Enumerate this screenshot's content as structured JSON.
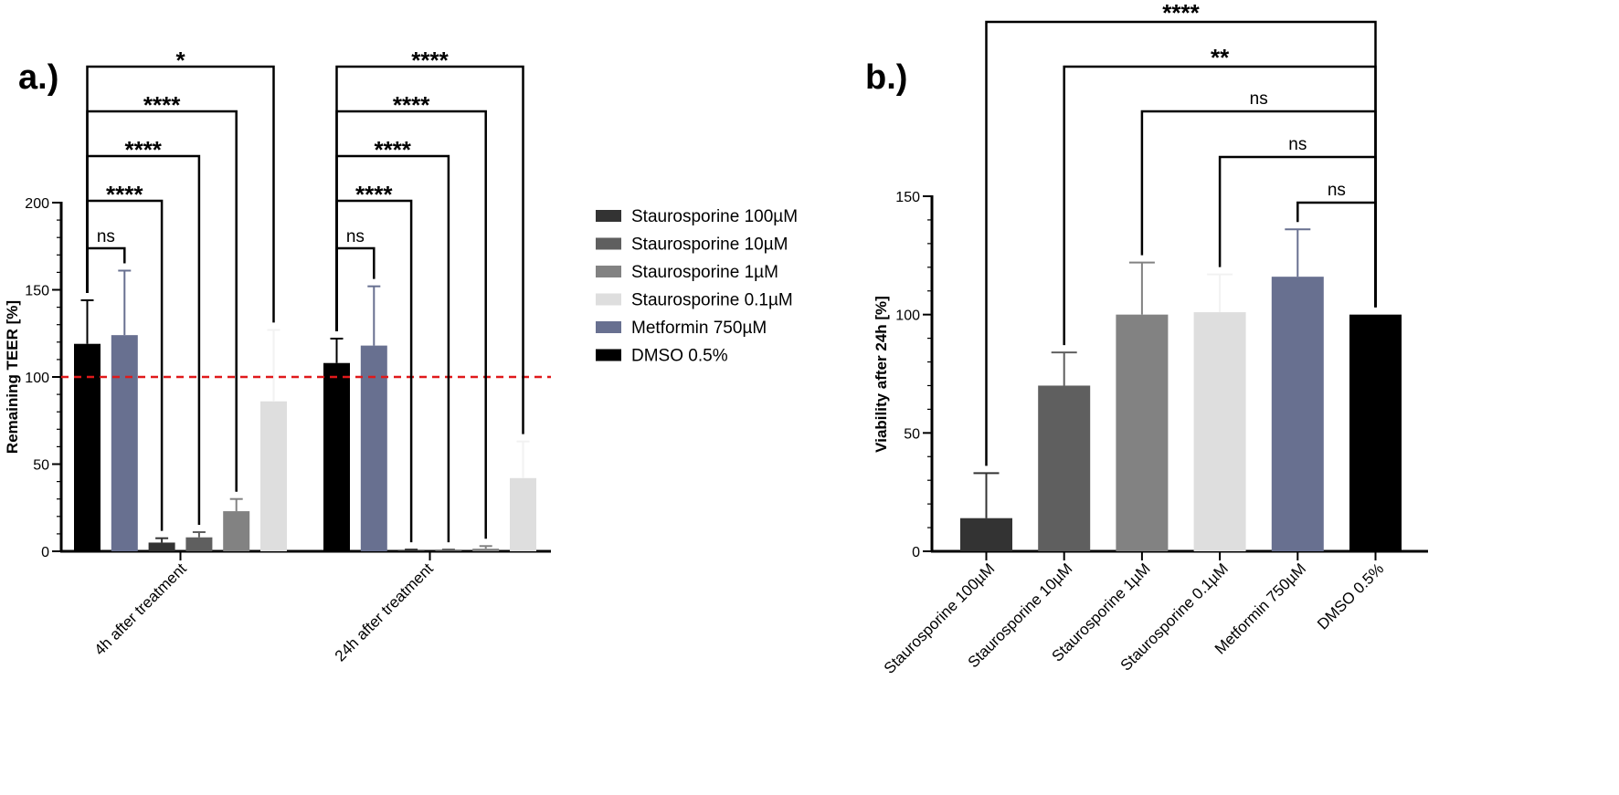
{
  "series_names": [
    "Staurosporine 100µM",
    "Staurosporine 10µM",
    "Staurosporine 1µM",
    "Staurosporine 0.1µM",
    "Metformin 750µM",
    "DMSO 0.5%"
  ],
  "chart_data": [
    {
      "panel": "a.)",
      "type": "bar",
      "ylabel": "Remaining  TEER [%]",
      "ylim": [
        0,
        200
      ],
      "yticks": [
        0,
        50,
        100,
        150,
        200
      ],
      "reference_line": 100,
      "categories": [
        "4h after treatment",
        "24h after treatment"
      ],
      "series": [
        {
          "name": "DMSO 0.5%",
          "color": "#000000",
          "values": [
            119,
            108
          ],
          "error": [
            25,
            14
          ]
        },
        {
          "name": "Metformin 750µM",
          "color": "#687090",
          "values": [
            124,
            118
          ],
          "error": [
            37,
            34
          ]
        },
        {
          "name": "Staurosporine 100µM",
          "color": "#333333",
          "values": [
            5,
            0.5
          ],
          "error": [
            2.5,
            0.5
          ]
        },
        {
          "name": "Staurosporine 10µM",
          "color": "#5f5f5f",
          "values": [
            8,
            0.5
          ],
          "error": [
            3,
            0.5
          ]
        },
        {
          "name": "Staurosporine 1µM",
          "color": "#828282",
          "values": [
            23,
            1.5
          ],
          "error": [
            7,
            1.5
          ]
        },
        {
          "name": "Staurosporine 0.1µM",
          "color": "#dedede",
          "values": [
            86,
            42
          ],
          "error": [
            41,
            21
          ]
        }
      ],
      "comparisons": [
        {
          "group": 0,
          "to": 1,
          "label": "ns"
        },
        {
          "group": 0,
          "to": 2,
          "label": "****"
        },
        {
          "group": 0,
          "to": 3,
          "label": "****"
        },
        {
          "group": 0,
          "to": 4,
          "label": "****"
        },
        {
          "group": 0,
          "to": 5,
          "label": "*"
        },
        {
          "group": 1,
          "to": 1,
          "label": "ns"
        },
        {
          "group": 1,
          "to": 2,
          "label": "****"
        },
        {
          "group": 1,
          "to": 3,
          "label": "****"
        },
        {
          "group": 1,
          "to": 4,
          "label": "****"
        },
        {
          "group": 1,
          "to": 5,
          "label": "****"
        }
      ]
    },
    {
      "panel": "b.)",
      "type": "bar",
      "ylabel": "Viability after 24h [%]",
      "ylim": [
        0,
        150
      ],
      "yticks": [
        0,
        50,
        100,
        150
      ],
      "categories": [
        "Staurosporine 100µM",
        "Staurosporine 10µM",
        "Staurosporine 1µM",
        "Staurosporine 0.1µM",
        "Metformin 750µM",
        "DMSO 0.5%"
      ],
      "colors": [
        "#333333",
        "#5f5f5f",
        "#828282",
        "#dedede",
        "#687090",
        "#000000"
      ],
      "values": [
        14,
        70,
        100,
        101,
        116,
        100
      ],
      "error": [
        19,
        14,
        22,
        16,
        20,
        0
      ],
      "comparisons": [
        {
          "from": 0,
          "to": 5,
          "label": "****"
        },
        {
          "from": 1,
          "to": 5,
          "label": "**"
        },
        {
          "from": 2,
          "to": 5,
          "label": "ns"
        },
        {
          "from": 3,
          "to": 5,
          "label": "ns"
        },
        {
          "from": 4,
          "to": 5,
          "label": "ns"
        }
      ]
    }
  ]
}
